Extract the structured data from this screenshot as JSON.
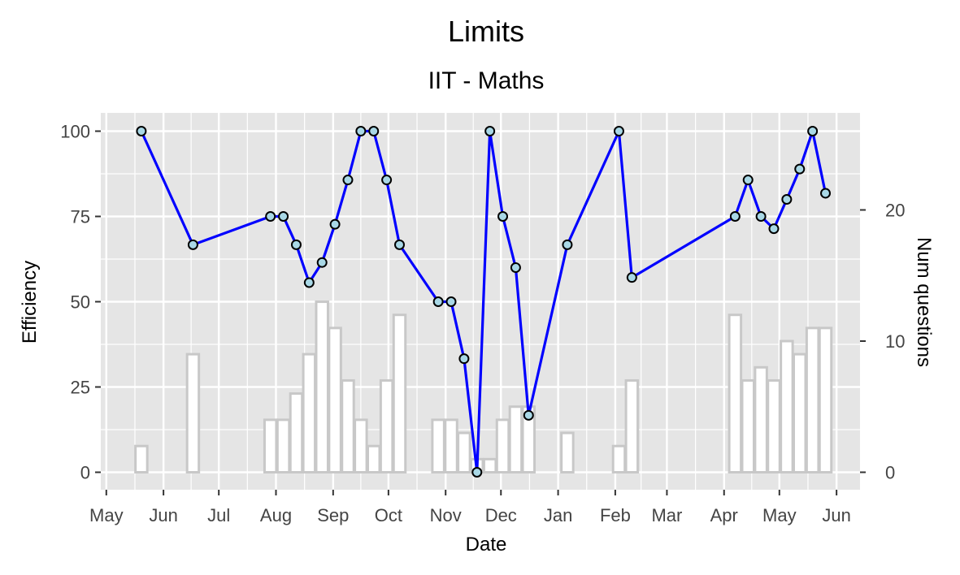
{
  "chart_data": {
    "type": "line",
    "title": "Limits",
    "subtitle": "IIT - Maths",
    "xlabel": "Date",
    "ylabel": "Efficiency",
    "y2label": "Num questions",
    "x_ticks": [
      "May",
      "Jun",
      "Jul",
      "Aug",
      "Sep",
      "Oct",
      "Nov",
      "Dec",
      "Jan",
      "Feb",
      "Mar",
      "Apr",
      "May",
      "Jun"
    ],
    "y_ticks": [
      "0",
      "25",
      "50",
      "75",
      "100"
    ],
    "y2_ticks": [
      "0",
      "10",
      "20"
    ],
    "ylim": [
      0,
      100
    ],
    "y2lim": [
      0,
      26
    ],
    "grid": true,
    "colors": {
      "panel": "#e5e5e5",
      "grid": "#ffffff",
      "line": "#0000ff",
      "point_fill": "#a9d8e6",
      "bar_outline": "#c8c8c8",
      "bar_fill": "#ffffff"
    },
    "series": [
      {
        "type": "line",
        "axis": "left",
        "points": [
          {
            "x": "2017-05-20",
            "y": 100
          },
          {
            "x": "2017-06-17",
            "y": 66.7
          },
          {
            "x": "2017-07-29",
            "y": 75
          },
          {
            "x": "2017-08-05",
            "y": 75
          },
          {
            "x": "2017-08-12",
            "y": 66.7
          },
          {
            "x": "2017-08-19",
            "y": 55.6
          },
          {
            "x": "2017-08-26",
            "y": 61.5
          },
          {
            "x": "2017-09-02",
            "y": 72.7
          },
          {
            "x": "2017-09-09",
            "y": 85.7
          },
          {
            "x": "2017-09-16",
            "y": 100
          },
          {
            "x": "2017-09-23",
            "y": 100
          },
          {
            "x": "2017-09-30",
            "y": 85.7
          },
          {
            "x": "2017-10-07",
            "y": 66.7
          },
          {
            "x": "2017-10-28",
            "y": 50
          },
          {
            "x": "2017-11-04",
            "y": 50
          },
          {
            "x": "2017-11-11",
            "y": 33.3
          },
          {
            "x": "2017-11-18",
            "y": 0
          },
          {
            "x": "2017-11-25",
            "y": 100
          },
          {
            "x": "2017-12-02",
            "y": 75
          },
          {
            "x": "2017-12-09",
            "y": 60
          },
          {
            "x": "2017-12-16",
            "y": 16.7
          },
          {
            "x": "2018-01-06",
            "y": 66.7
          },
          {
            "x": "2018-02-03",
            "y": 100
          },
          {
            "x": "2018-02-10",
            "y": 57.1
          },
          {
            "x": "2018-04-07",
            "y": 75
          },
          {
            "x": "2018-04-14",
            "y": 85.7
          },
          {
            "x": "2018-04-21",
            "y": 75
          },
          {
            "x": "2018-04-28",
            "y": 71.4
          },
          {
            "x": "2018-05-05",
            "y": 80
          },
          {
            "x": "2018-05-12",
            "y": 88.9
          },
          {
            "x": "2018-05-19",
            "y": 100
          },
          {
            "x": "2018-05-26",
            "y": 81.8
          }
        ]
      },
      {
        "type": "bar",
        "axis": "right",
        "points": [
          {
            "x": "2017-05-20",
            "y": 2
          },
          {
            "x": "2017-06-17",
            "y": 9
          },
          {
            "x": "2017-07-29",
            "y": 4
          },
          {
            "x": "2017-08-05",
            "y": 4
          },
          {
            "x": "2017-08-12",
            "y": 6
          },
          {
            "x": "2017-08-19",
            "y": 9
          },
          {
            "x": "2017-08-26",
            "y": 13
          },
          {
            "x": "2017-09-02",
            "y": 11
          },
          {
            "x": "2017-09-09",
            "y": 7
          },
          {
            "x": "2017-09-16",
            "y": 4
          },
          {
            "x": "2017-09-23",
            "y": 2
          },
          {
            "x": "2017-09-30",
            "y": 7
          },
          {
            "x": "2017-10-07",
            "y": 12
          },
          {
            "x": "2017-10-28",
            "y": 4
          },
          {
            "x": "2017-11-04",
            "y": 4
          },
          {
            "x": "2017-11-11",
            "y": 3
          },
          {
            "x": "2017-11-18",
            "y": 1
          },
          {
            "x": "2017-11-25",
            "y": 1
          },
          {
            "x": "2017-12-02",
            "y": 4
          },
          {
            "x": "2017-12-09",
            "y": 5
          },
          {
            "x": "2017-12-16",
            "y": 5
          },
          {
            "x": "2018-01-06",
            "y": 3
          },
          {
            "x": "2018-02-03",
            "y": 2
          },
          {
            "x": "2018-02-10",
            "y": 7
          },
          {
            "x": "2018-04-07",
            "y": 12
          },
          {
            "x": "2018-04-14",
            "y": 7
          },
          {
            "x": "2018-04-21",
            "y": 8
          },
          {
            "x": "2018-04-28",
            "y": 7
          },
          {
            "x": "2018-05-05",
            "y": 10
          },
          {
            "x": "2018-05-12",
            "y": 9
          },
          {
            "x": "2018-05-19",
            "y": 11
          },
          {
            "x": "2018-05-26",
            "y": 11
          }
        ]
      }
    ]
  }
}
